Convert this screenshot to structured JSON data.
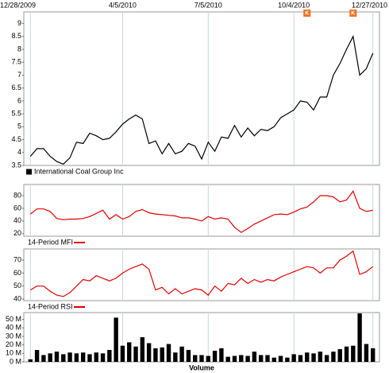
{
  "chart_data": [
    {
      "type": "line",
      "xlim": [
        -1,
        53
      ],
      "xticks": [
        {
          "value": 0,
          "label": "12/28/2009"
        },
        {
          "value": 14,
          "label": "4/5/2010"
        },
        {
          "value": 27,
          "label": "7/5/2010"
        },
        {
          "value": 40,
          "label": "10/4/2010"
        },
        {
          "value": 52,
          "label": "12/27/2010"
        }
      ],
      "ylim": [
        3.5,
        9.45
      ],
      "yticks": [
        3.5,
        4.0,
        4.5,
        5.0,
        5.5,
        6.0,
        6.5,
        7.0,
        7.5,
        8.0,
        8.5,
        9.0
      ],
      "grid": true,
      "markers": [
        {
          "label": "K",
          "x": 42
        },
        {
          "label": "K",
          "x": 49
        }
      ],
      "series": [
        {
          "name": "International Coal Group Inc",
          "color": "#000000",
          "values": [
            3.85,
            4.15,
            4.15,
            3.85,
            3.65,
            3.55,
            3.8,
            4.4,
            4.35,
            4.75,
            4.65,
            4.5,
            4.55,
            4.8,
            5.1,
            5.3,
            5.45,
            5.3,
            4.35,
            4.45,
            3.95,
            4.35,
            3.95,
            4.05,
            4.35,
            4.25,
            3.75,
            4.4,
            4.05,
            4.6,
            4.55,
            5.05,
            4.6,
            4.95,
            4.65,
            4.9,
            4.85,
            5.0,
            5.35,
            5.5,
            5.65,
            6.0,
            5.95,
            5.65,
            6.15,
            6.15,
            7.0,
            7.45,
            8.0,
            8.5,
            7.0,
            7.25,
            7.85
          ]
        }
      ]
    },
    {
      "type": "line",
      "ylim": [
        16,
        97.5
      ],
      "yticks": [
        20,
        40,
        60,
        80
      ],
      "grid": true,
      "series": [
        {
          "name": "14-Period MFI",
          "color": "#e00000",
          "values": [
            51,
            59,
            59,
            55,
            44,
            42,
            43,
            43,
            44,
            47,
            52,
            57,
            43,
            50,
            43,
            47,
            55,
            58,
            53,
            51,
            50,
            49,
            48,
            45,
            45,
            43,
            40,
            47,
            43,
            45,
            43,
            30,
            22,
            28,
            35,
            40,
            45,
            50,
            51,
            50,
            54,
            59,
            62,
            70,
            80,
            80,
            78,
            70,
            73,
            87,
            60,
            55,
            57
          ]
        }
      ]
    },
    {
      "type": "line",
      "ylim": [
        38.8,
        78.6
      ],
      "yticks": [
        40,
        50,
        60,
        70
      ],
      "grid": true,
      "series": [
        {
          "name": "14-Period RSI",
          "color": "#e00000",
          "values": [
            47,
            50,
            50,
            46,
            43,
            42,
            45,
            50,
            55,
            54,
            58,
            56,
            54,
            56,
            60,
            63,
            65,
            67,
            63,
            47,
            49,
            44,
            48,
            44,
            46,
            48,
            47,
            43,
            50,
            46,
            52,
            51,
            56,
            52,
            55,
            53,
            55,
            54,
            57,
            59,
            61,
            63,
            65,
            64,
            60,
            64,
            64,
            70,
            73,
            77,
            59,
            61,
            65
          ]
        }
      ]
    },
    {
      "type": "bar",
      "xlabel": "Volume",
      "ylim": [
        0,
        58
      ],
      "yticks": [
        {
          "value": 0,
          "label": "0 M"
        },
        {
          "value": 10,
          "label": "10 M"
        },
        {
          "value": 20,
          "label": "20 M"
        },
        {
          "value": 30,
          "label": "30 M"
        },
        {
          "value": 40,
          "label": "40 M"
        },
        {
          "value": 50,
          "label": "50 M"
        }
      ],
      "grid": true,
      "color": "#000000",
      "values": [
        3,
        14,
        8,
        10,
        12,
        9,
        11,
        10,
        11,
        9,
        11,
        10,
        14,
        52,
        19,
        23,
        18,
        29,
        22,
        16,
        17,
        21,
        11,
        18,
        14,
        8,
        8,
        7,
        13,
        16,
        6,
        7,
        8,
        7,
        12,
        8,
        8,
        5,
        7,
        5,
        9,
        8,
        11,
        10,
        12,
        8,
        12,
        15,
        18,
        19,
        57,
        21,
        16
      ]
    }
  ]
}
